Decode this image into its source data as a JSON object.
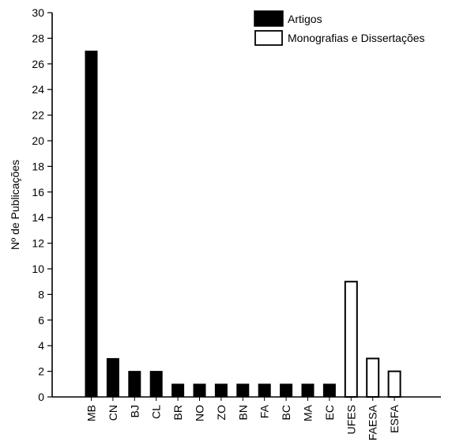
{
  "chart_data": {
    "type": "bar",
    "title": "",
    "xlabel": "",
    "ylabel": "Nº de Publicações",
    "ylim": [
      0,
      30
    ],
    "yticks": [
      0,
      2,
      4,
      6,
      8,
      10,
      12,
      14,
      16,
      18,
      20,
      22,
      24,
      26,
      28,
      30
    ],
    "grid": false,
    "legend_position": "top-right",
    "categories": [
      "MB",
      "CN",
      "BJ",
      "CL",
      "BR",
      "NO",
      "ZO",
      "BN",
      "FA",
      "BC",
      "MA",
      "EC",
      "UFES",
      "FAESA",
      "ESFA"
    ],
    "values": [
      27,
      3,
      2,
      2,
      1,
      1,
      1,
      1,
      1,
      1,
      1,
      1,
      9,
      3,
      2
    ],
    "series_of_category": [
      "Artigos",
      "Artigos",
      "Artigos",
      "Artigos",
      "Artigos",
      "Artigos",
      "Artigos",
      "Artigos",
      "Artigos",
      "Artigos",
      "Artigos",
      "Artigos",
      "Monografias e Dissertações",
      "Monografias e Dissertações",
      "Monografias e Dissertações"
    ],
    "series": [
      {
        "name": "Artigos",
        "fill": "#000000"
      },
      {
        "name": "Monografias e Dissertações",
        "fill": "#ffffff"
      }
    ]
  }
}
